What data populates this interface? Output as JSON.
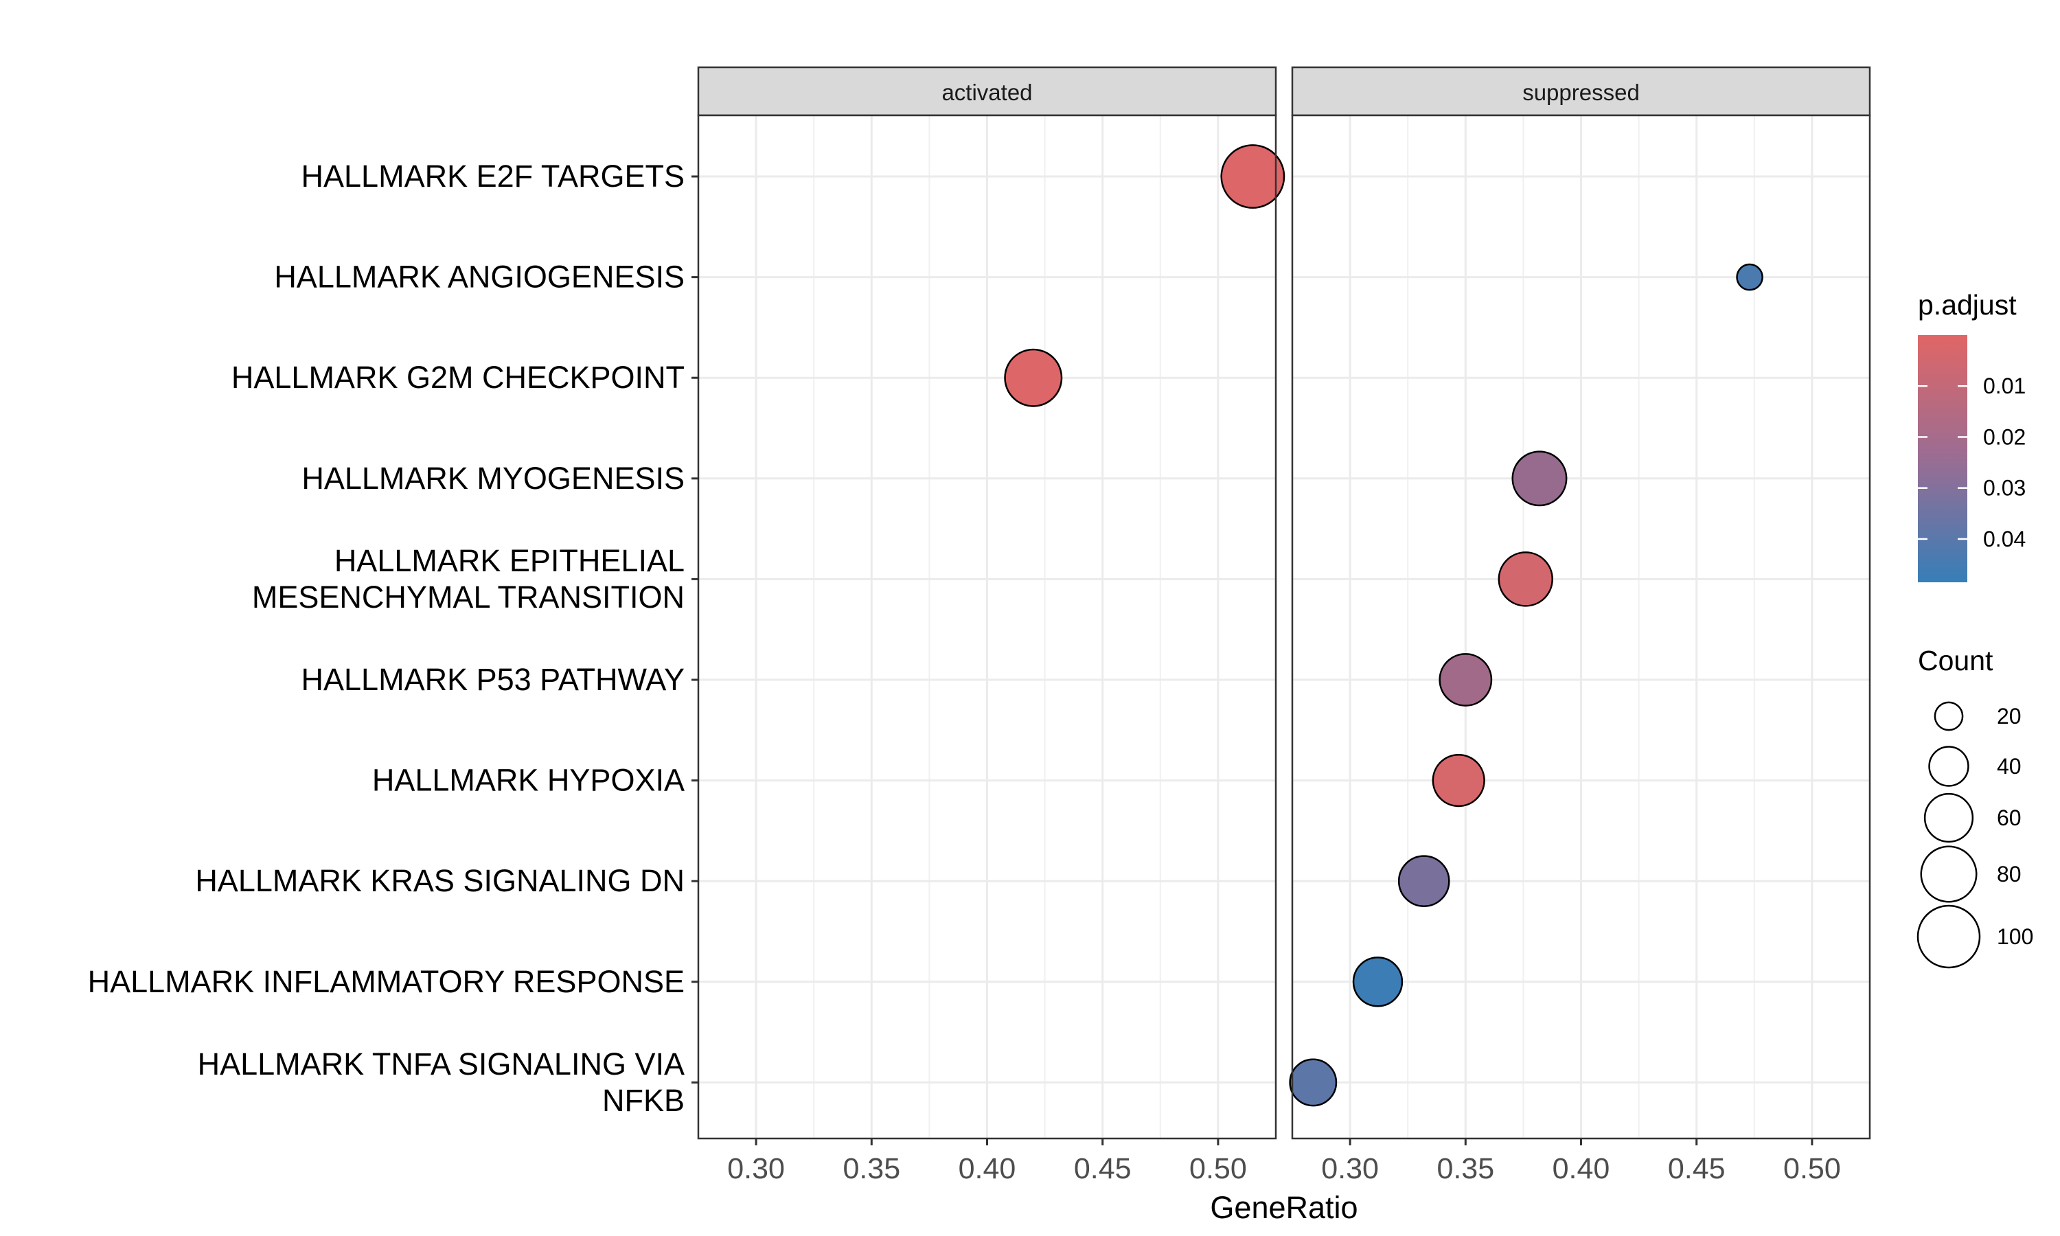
{
  "chart_data": {
    "type": "scatter",
    "xlabel": "GeneRatio",
    "ylabel": "",
    "xlim": [
      0.275,
      0.525
    ],
    "x_ticks": [
      "0.30",
      "0.35",
      "0.40",
      "0.45",
      "0.50"
    ],
    "grid": true,
    "facets": [
      "activated",
      "suppressed"
    ],
    "categories": [
      "HALLMARK E2F TARGETS",
      "HALLMARK ANGIOGENESIS",
      "HALLMARK G2M CHECKPOINT",
      "HALLMARK MYOGENESIS",
      "HALLMARK EPITHELIAL MESENCHYMAL TRANSITION",
      "HALLMARK P53 PATHWAY",
      "HALLMARK HYPOXIA",
      "HALLMARK KRAS SIGNALING DN",
      "HALLMARK INFLAMMATORY RESPONSE",
      "HALLMARK TNFA SIGNALING VIA NFKB"
    ],
    "category_labels": [
      [
        "HALLMARK E2F TARGETS"
      ],
      [
        "HALLMARK ANGIOGENESIS"
      ],
      [
        "HALLMARK G2M CHECKPOINT"
      ],
      [
        "HALLMARK MYOGENESIS"
      ],
      [
        "HALLMARK EPITHELIAL",
        "MESENCHYMAL TRANSITION"
      ],
      [
        "HALLMARK P53 PATHWAY"
      ],
      [
        "HALLMARK HYPOXIA"
      ],
      [
        "HALLMARK KRAS SIGNALING DN"
      ],
      [
        "HALLMARK INFLAMMATORY RESPONSE"
      ],
      [
        "HALLMARK TNFA SIGNALING VIA",
        "NFKB"
      ]
    ],
    "points": [
      {
        "facet": "activated",
        "category": "HALLMARK E2F TARGETS",
        "x": 0.515,
        "count": 103,
        "p_adjust": 0.001
      },
      {
        "facet": "activated",
        "category": "HALLMARK G2M CHECKPOINT",
        "x": 0.42,
        "count": 84,
        "p_adjust": 0.001
      },
      {
        "facet": "suppressed",
        "category": "HALLMARK ANGIOGENESIS",
        "x": 0.473,
        "count": 17,
        "p_adjust": 0.043
      },
      {
        "facet": "suppressed",
        "category": "HALLMARK MYOGENESIS",
        "x": 0.382,
        "count": 76,
        "p_adjust": 0.022
      },
      {
        "facet": "suppressed",
        "category": "HALLMARK EPITHELIAL MESENCHYMAL TRANSITION",
        "x": 0.376,
        "count": 75,
        "p_adjust": 0.004
      },
      {
        "facet": "suppressed",
        "category": "HALLMARK P53 PATHWAY",
        "x": 0.35,
        "count": 70,
        "p_adjust": 0.019
      },
      {
        "facet": "suppressed",
        "category": "HALLMARK HYPOXIA",
        "x": 0.347,
        "count": 69,
        "p_adjust": 0.003
      },
      {
        "facet": "suppressed",
        "category": "HALLMARK KRAS SIGNALING DN",
        "x": 0.332,
        "count": 66,
        "p_adjust": 0.03
      },
      {
        "facet": "suppressed",
        "category": "HALLMARK INFLAMMATORY RESPONSE",
        "x": 0.312,
        "count": 62,
        "p_adjust": 0.047
      },
      {
        "facet": "suppressed",
        "category": "HALLMARK TNFA SIGNALING VIA NFKB",
        "x": 0.284,
        "count": 56,
        "p_adjust": 0.038
      }
    ],
    "color_legend": {
      "title": "p.adjust",
      "tick_values": [
        0.01,
        0.02,
        0.03,
        0.04
      ],
      "tick_labels": [
        "0.01",
        "0.02",
        "0.03",
        "0.04"
      ],
      "range": [
        0.0,
        0.0485
      ],
      "low_color": "#e06666",
      "mid_color": "#8e6b92",
      "high_color": "#377eb8"
    },
    "size_legend": {
      "title": "Count",
      "values": [
        20,
        40,
        60,
        80,
        100
      ],
      "labels": [
        "20",
        "40",
        "60",
        "80",
        "100"
      ]
    },
    "legend_position": "right"
  }
}
